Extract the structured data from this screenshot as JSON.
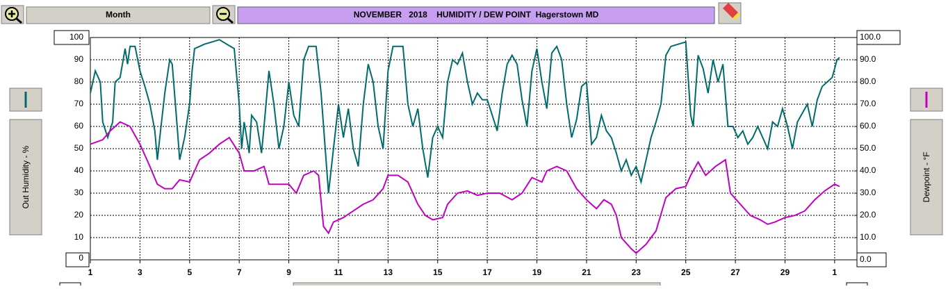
{
  "toolbar": {
    "period": "Month"
  },
  "chart_data": {
    "type": "line",
    "title": "NOVEMBER   2018    HUMIDITY / DEW POINT  Hagerstown MD",
    "xlim": [
      1,
      31.9
    ],
    "xticks": [
      1,
      3,
      5,
      7,
      9,
      11,
      13,
      15,
      17,
      19,
      21,
      23,
      25,
      27,
      29,
      {
        "value": 31,
        "label": "1"
      }
    ],
    "ylim": [
      0,
      100
    ],
    "yticks": [
      0,
      10,
      20,
      30,
      40,
      50,
      60,
      70,
      80,
      90,
      100
    ],
    "y2lim": [
      0,
      100
    ],
    "y2ticks": [
      {
        "value": 0,
        "label": "0.0"
      },
      {
        "value": 10,
        "label": "10.0"
      },
      {
        "value": 20,
        "label": "20.0"
      },
      {
        "value": 30,
        "label": "30.0"
      },
      {
        "value": 40,
        "label": "40.0"
      },
      {
        "value": 50,
        "label": "50.0"
      },
      {
        "value": 60,
        "label": "60.0"
      },
      {
        "value": 70,
        "label": "70.0"
      },
      {
        "value": 80,
        "label": "80.0"
      },
      {
        "value": 90,
        "label": "90.0"
      },
      {
        "value": 100,
        "label": "100.0"
      }
    ],
    "grid": true,
    "series": [
      {
        "name": "Out Humidity - %",
        "color": "#006b6b",
        "axis": "y",
        "x": [
          1.0,
          1.2,
          1.4,
          1.5,
          1.7,
          1.9,
          2.0,
          2.2,
          2.4,
          2.5,
          2.6,
          2.8,
          3.0,
          3.2,
          3.4,
          3.6,
          3.7,
          3.8,
          4.0,
          4.2,
          4.3,
          4.5,
          4.6,
          4.8,
          5.0,
          5.1,
          5.2,
          5.4,
          5.6,
          5.9,
          6.2,
          6.5,
          6.8,
          7.0,
          7.1,
          7.2,
          7.4,
          7.5,
          7.7,
          7.9,
          8.0,
          8.2,
          8.4,
          8.6,
          8.8,
          9.0,
          9.2,
          9.4,
          9.6,
          9.8,
          10.1,
          10.3,
          10.5,
          10.6,
          10.8,
          11.0,
          11.2,
          11.4,
          11.6,
          11.8,
          12.0,
          12.2,
          12.4,
          12.6,
          12.8,
          13.0,
          13.2,
          13.6,
          13.8,
          14.0,
          14.2,
          14.4,
          14.6,
          14.8,
          15.0,
          15.2,
          15.4,
          15.6,
          15.8,
          16.0,
          16.2,
          16.4,
          16.6,
          16.8,
          17.0,
          17.2,
          17.4,
          17.6,
          17.8,
          18.0,
          18.2,
          18.4,
          18.6,
          18.8,
          19.0,
          19.2,
          19.4,
          19.6,
          19.8,
          20.0,
          20.2,
          20.4,
          20.6,
          20.8,
          21.0,
          21.2,
          21.4,
          21.6,
          21.8,
          22.0,
          22.2,
          22.4,
          22.6,
          22.8,
          23.0,
          23.2,
          23.4,
          23.6,
          23.8,
          24.0,
          24.2,
          24.4,
          24.7,
          25.0,
          25.2,
          25.3,
          25.5,
          25.7,
          25.9,
          26.1,
          26.3,
          26.5,
          26.7,
          26.9,
          27.1,
          27.3,
          27.5,
          27.7,
          27.9,
          28.1,
          28.3,
          28.5,
          28.7,
          28.9,
          29.1,
          29.3,
          29.5,
          29.7,
          29.9,
          30.1,
          30.3,
          30.5,
          30.7,
          30.9,
          31.1,
          31.2
        ],
        "values": [
          75,
          85,
          80,
          62,
          55,
          62,
          80,
          82,
          95,
          88,
          96,
          96,
          85,
          78,
          70,
          58,
          45,
          55,
          75,
          90,
          88,
          60,
          45,
          55,
          70,
          85,
          95,
          96,
          97,
          98,
          99,
          97,
          95,
          70,
          50,
          62,
          48,
          65,
          62,
          48,
          60,
          85,
          70,
          50,
          60,
          80,
          65,
          60,
          90,
          96,
          96,
          75,
          45,
          30,
          50,
          70,
          55,
          68,
          50,
          42,
          70,
          88,
          80,
          60,
          50,
          85,
          96,
          96,
          70,
          60,
          68,
          50,
          37,
          55,
          60,
          55,
          80,
          90,
          88,
          93,
          80,
          70,
          75,
          72,
          72,
          65,
          58,
          75,
          88,
          92,
          88,
          72,
          60,
          85,
          95,
          80,
          68,
          93,
          96,
          90,
          70,
          55,
          63,
          78,
          80,
          52,
          55,
          65,
          58,
          55,
          48,
          40,
          45,
          38,
          42,
          35,
          45,
          55,
          62,
          70,
          92,
          96,
          97,
          98,
          65,
          60,
          92,
          86,
          75,
          90,
          80,
          88,
          60,
          60,
          55,
          58,
          52,
          55,
          60,
          55,
          50,
          62,
          60,
          68,
          60,
          50,
          62,
          66,
          70,
          60,
          72,
          78,
          80,
          82,
          90,
          91
        ]
      },
      {
        "name": "Dewpoint - °F",
        "color": "#c000c0",
        "axis": "y2",
        "x": [
          1.0,
          1.5,
          1.8,
          2.2,
          2.6,
          3.0,
          3.4,
          3.7,
          4.0,
          4.3,
          4.6,
          5.0,
          5.4,
          5.8,
          6.2,
          6.6,
          7.0,
          7.2,
          7.6,
          8.0,
          8.2,
          8.6,
          9.0,
          9.3,
          9.6,
          10.0,
          10.2,
          10.4,
          10.6,
          10.8,
          11.2,
          11.6,
          12.0,
          12.4,
          12.8,
          13.0,
          13.4,
          13.8,
          14.2,
          14.5,
          14.8,
          15.2,
          15.4,
          15.8,
          16.2,
          16.6,
          17.0,
          17.5,
          18.0,
          18.4,
          18.8,
          19.2,
          19.4,
          19.8,
          20.2,
          20.6,
          21.0,
          21.4,
          21.7,
          22.0,
          22.2,
          22.4,
          22.8,
          23.0,
          23.4,
          23.8,
          24.2,
          24.6,
          25.0,
          25.2,
          25.5,
          25.8,
          26.2,
          26.6,
          26.8,
          27.2,
          27.6,
          28.0,
          28.3,
          28.6,
          29.0,
          29.4,
          29.8,
          30.2,
          30.6,
          31.0,
          31.2
        ],
        "values": [
          52,
          54,
          58,
          62,
          60,
          52,
          42,
          34,
          32,
          32,
          36,
          35,
          45,
          48,
          52,
          55,
          48,
          40,
          40,
          42,
          34,
          34,
          34,
          30,
          38,
          40,
          38,
          15,
          12,
          17,
          19,
          22,
          25,
          27,
          32,
          38,
          38,
          35,
          25,
          20,
          18,
          19,
          25,
          30,
          31,
          29,
          30,
          30,
          27,
          30,
          37,
          35,
          40,
          42,
          40,
          32,
          27,
          23,
          27,
          25,
          20,
          10,
          5,
          3,
          7,
          13,
          28,
          32,
          33,
          38,
          44,
          38,
          42,
          45,
          30,
          25,
          20,
          18,
          16,
          17,
          19,
          20,
          22,
          27,
          31,
          34,
          33
        ]
      }
    ]
  }
}
